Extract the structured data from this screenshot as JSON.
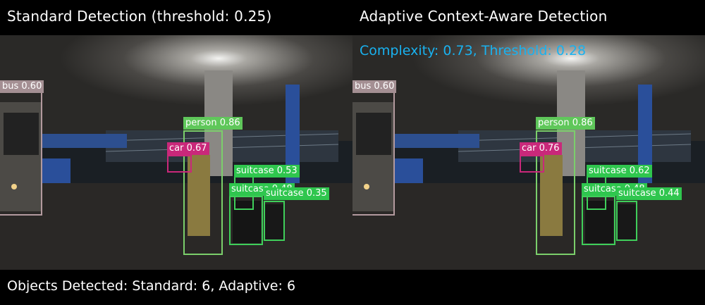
{
  "left": {
    "title": "Standard Detection (threshold: 0.25)",
    "detections": {
      "bus": "bus 0.60",
      "person": "person 0.86",
      "car": "car 0.67",
      "suitcase_1": "suitcase 0.53",
      "suitcase_2": "suitcase 0.48",
      "suitcase_3": "suitcase 0.35"
    }
  },
  "right": {
    "title": "Adaptive Context-Aware Detection",
    "status": "Complexity: 0.73, Threshold: 0.28",
    "detections": {
      "bus": "bus 0.60",
      "person": "person 0.86",
      "car": "car 0.76",
      "suitcase_1": "suitcase 0.62",
      "suitcase_2": "suitcase 0.48",
      "suitcase_3": "suitcase 0.44"
    }
  },
  "footer": "Objects Detected: Standard: 6, Adaptive: 6",
  "colors": {
    "person": "#5fc75a",
    "suitcase": "#2fc64e",
    "car": "#c9287a",
    "bus": "#a48f93",
    "status": "#19b2f0"
  }
}
